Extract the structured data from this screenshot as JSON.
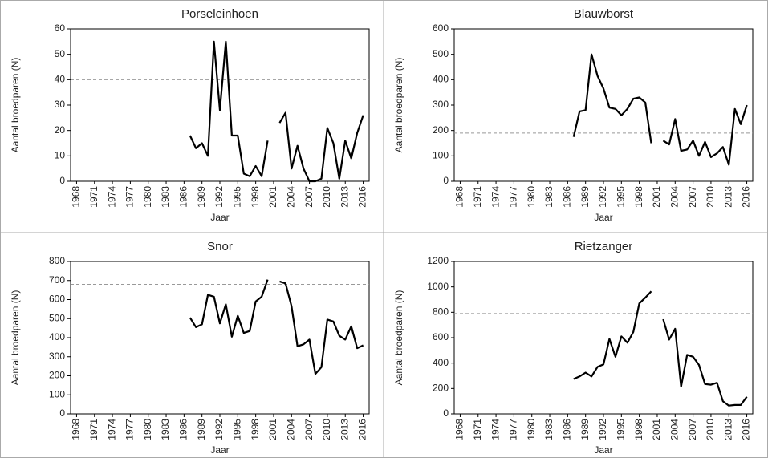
{
  "chart_data": [
    {
      "type": "line",
      "title": "Porseleinhoen",
      "x_label": "Jaar",
      "y_label": "Aantal broedparen (N)",
      "x": [
        1987,
        1988,
        1989,
        1990,
        1991,
        1992,
        1993,
        1994,
        1995,
        1996,
        1997,
        1998,
        1999,
        2000,
        2001,
        2002,
        2003,
        2004,
        2005,
        2006,
        2007,
        2008,
        2009,
        2010,
        2011,
        2012,
        2013,
        2014,
        2015,
        2016
      ],
      "values": [
        18,
        13,
        15,
        10,
        55,
        28,
        55,
        18,
        18,
        3,
        2,
        6,
        2,
        16,
        null,
        23,
        27,
        5,
        14,
        5,
        0,
        0,
        1,
        21,
        15,
        1,
        16,
        9,
        19,
        26
      ],
      "color": "#000000",
      "reference_line": 40,
      "reference_color": "#999999",
      "xlim": [
        1967,
        2017
      ],
      "xticks": [
        1968,
        1971,
        1974,
        1977,
        1980,
        1983,
        1986,
        1989,
        1992,
        1995,
        1998,
        2001,
        2004,
        2007,
        2010,
        2013,
        2016
      ],
      "ylim": [
        0,
        60
      ],
      "yticks": [
        0,
        10,
        20,
        30,
        40,
        50,
        60
      ]
    },
    {
      "type": "line",
      "title": "Blauwborst",
      "x_label": "Jaar",
      "y_label": "Aantal broedparen (N)",
      "x": [
        1987,
        1988,
        1989,
        1990,
        1991,
        1992,
        1993,
        1994,
        1995,
        1996,
        1997,
        1998,
        1999,
        2000,
        2001,
        2002,
        2003,
        2004,
        2005,
        2006,
        2007,
        2008,
        2009,
        2010,
        2011,
        2012,
        2013,
        2014,
        2015,
        2016
      ],
      "values": [
        175,
        275,
        280,
        500,
        415,
        365,
        290,
        285,
        260,
        285,
        325,
        330,
        310,
        150,
        null,
        160,
        145,
        245,
        120,
        125,
        160,
        100,
        155,
        95,
        110,
        135,
        65,
        285,
        225,
        300
      ],
      "color": "#000000",
      "reference_line": 190,
      "reference_color": "#999999",
      "xlim": [
        1967,
        2017
      ],
      "xticks": [
        1968,
        1971,
        1974,
        1977,
        1980,
        1983,
        1986,
        1989,
        1992,
        1995,
        1998,
        2001,
        2004,
        2007,
        2010,
        2013,
        2016
      ],
      "ylim": [
        0,
        600
      ],
      "yticks": [
        0,
        100,
        200,
        300,
        400,
        500,
        600
      ]
    },
    {
      "type": "line",
      "title": "Snor",
      "x_label": "Jaar",
      "y_label": "Aantal broedparen (N)",
      "x": [
        1987,
        1988,
        1989,
        1990,
        1991,
        1992,
        1993,
        1994,
        1995,
        1996,
        1997,
        1998,
        1999,
        2000,
        2001,
        2002,
        2003,
        2004,
        2005,
        2006,
        2007,
        2008,
        2009,
        2010,
        2011,
        2012,
        2013,
        2014,
        2015,
        2016
      ],
      "values": [
        505,
        455,
        470,
        625,
        615,
        475,
        575,
        405,
        515,
        425,
        435,
        590,
        615,
        705,
        null,
        695,
        685,
        565,
        355,
        365,
        390,
        210,
        245,
        495,
        485,
        410,
        390,
        460,
        345,
        360
      ],
      "color": "#000000",
      "reference_line": 680,
      "reference_color": "#999999",
      "xlim": [
        1967,
        2017
      ],
      "xticks": [
        1968,
        1971,
        1974,
        1977,
        1980,
        1983,
        1986,
        1989,
        1992,
        1995,
        1998,
        2001,
        2004,
        2007,
        2010,
        2013,
        2016
      ],
      "ylim": [
        0,
        800
      ],
      "yticks": [
        0,
        100,
        200,
        300,
        400,
        500,
        600,
        700,
        800
      ]
    },
    {
      "type": "line",
      "title": "Rietzanger",
      "x_label": "Jaar",
      "y_label": "Aantal broedparen (N)",
      "x": [
        1987,
        1988,
        1989,
        1990,
        1991,
        1992,
        1993,
        1994,
        1995,
        1996,
        1997,
        1998,
        1999,
        2000,
        2001,
        2002,
        2003,
        2004,
        2005,
        2006,
        2007,
        2008,
        2009,
        2010,
        2011,
        2012,
        2013,
        2014,
        2015,
        2016
      ],
      "values": [
        275,
        295,
        325,
        295,
        370,
        390,
        590,
        450,
        610,
        560,
        645,
        870,
        915,
        965,
        null,
        745,
        585,
        670,
        215,
        465,
        450,
        385,
        235,
        230,
        245,
        100,
        65,
        70,
        70,
        135
      ],
      "color": "#000000",
      "reference_line": 790,
      "reference_color": "#999999",
      "xlim": [
        1967,
        2017
      ],
      "xticks": [
        1968,
        1971,
        1974,
        1977,
        1980,
        1983,
        1986,
        1989,
        1992,
        1995,
        1998,
        2001,
        2004,
        2007,
        2010,
        2013,
        2016
      ],
      "ylim": [
        0,
        1200
      ],
      "yticks": [
        0,
        200,
        400,
        600,
        800,
        1000,
        1200
      ]
    }
  ]
}
